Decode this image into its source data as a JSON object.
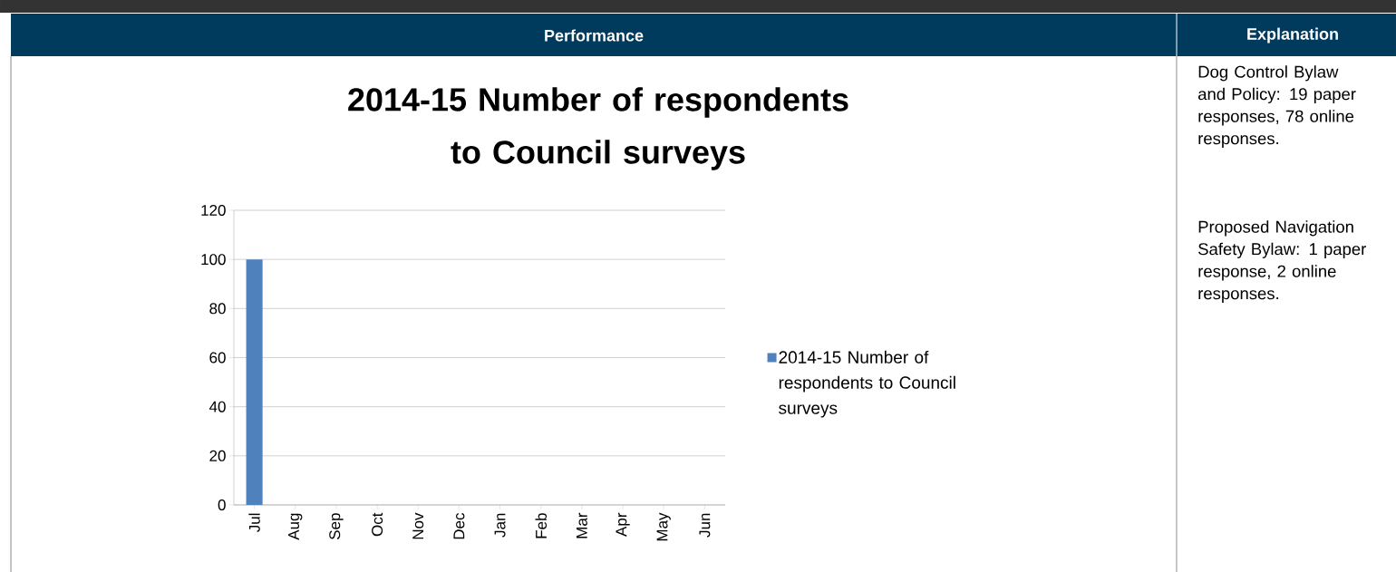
{
  "chart_data": {
    "type": "bar",
    "title": "2014-15 Number of respondents to Council surveys",
    "categories": [
      "Jul",
      "Aug",
      "Sep",
      "Oct",
      "Nov",
      "Dec",
      "Jan",
      "Feb",
      "Mar",
      "Apr",
      "May",
      "Jun"
    ],
    "series": [
      {
        "name": "2014-15 Number of respondents to Council surveys",
        "color": "#4f81bd",
        "values": [
          100,
          null,
          null,
          null,
          null,
          null,
          null,
          null,
          null,
          null,
          null,
          null
        ]
      }
    ],
    "ylim": [
      0,
      120
    ],
    "yticks": [
      0,
      20,
      40,
      60,
      80,
      100,
      120
    ],
    "grid": "y",
    "legend": "right",
    "annotations": [
      "Performance",
      "Explanation",
      "Dog Control Bylaw and Policy: 19 paper responses, 78 online responses.",
      "Proposed Navigation Safety Bylaw: 1 paper response, 2 online responses."
    ]
  }
}
